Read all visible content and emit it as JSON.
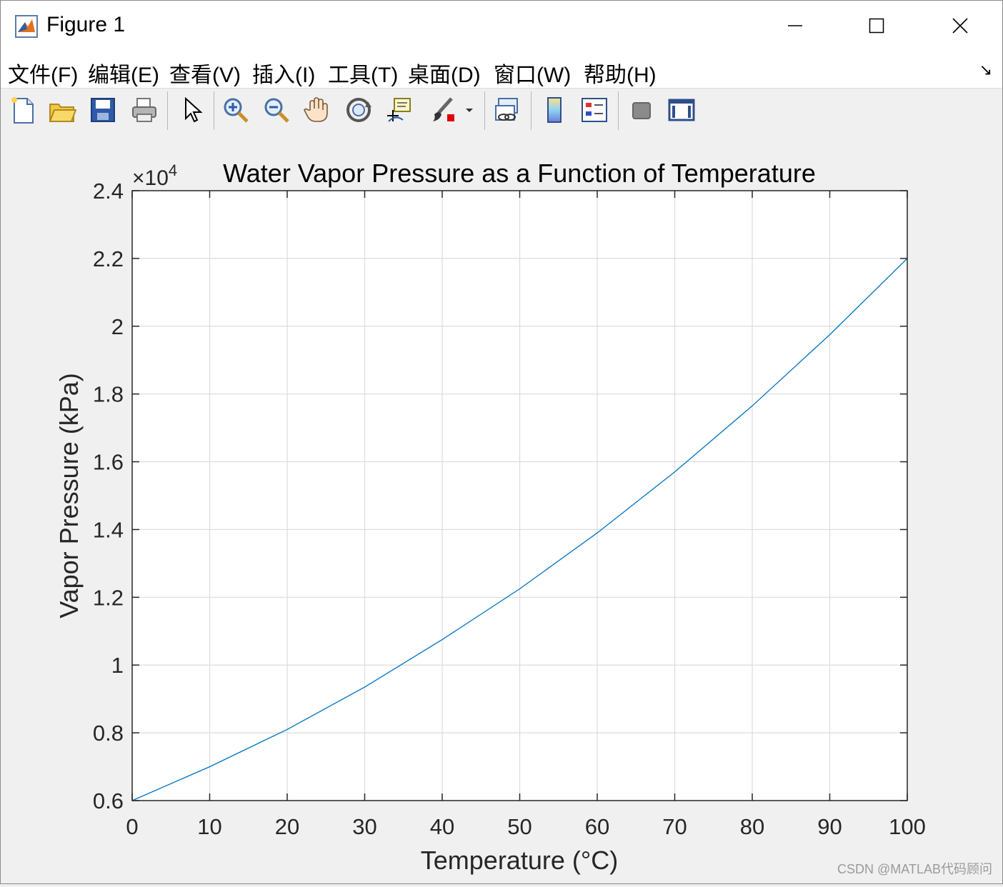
{
  "window": {
    "title": "Figure 1",
    "controls": {
      "minimize": "minimize-icon",
      "maximize": "maximize-icon",
      "close": "close-icon"
    }
  },
  "menu": [
    {
      "label": "文件(F)"
    },
    {
      "label": "编辑(E)"
    },
    {
      "label": "查看(V)"
    },
    {
      "label": "插入(I)"
    },
    {
      "label": "工具(T)"
    },
    {
      "label": "桌面(D)"
    },
    {
      "label": "窗口(W)"
    },
    {
      "label": "帮助(H)"
    }
  ],
  "toolbar": [
    "new-figure-icon",
    "open-file-icon",
    "save-icon",
    "print-icon",
    "edit-plot-arrow-icon",
    "zoom-in-icon",
    "zoom-out-icon",
    "pan-hand-icon",
    "rotate-3d-icon",
    "data-cursor-icon",
    "brush-icon",
    "link-plot-icon",
    "colorbar-icon",
    "legend-icon",
    "hide-plot-tools-icon",
    "show-plot-tools-icon"
  ],
  "chart_data": {
    "type": "line",
    "title": "Water Vapor Pressure as a Function of Temperature",
    "xlabel": "Temperature (°C)",
    "ylabel": "Vapor Pressure (kPa)",
    "y_exponent_label": "×10",
    "y_exponent_power": "4",
    "xlim": [
      0,
      100
    ],
    "ylim": [
      0.6,
      2.4
    ],
    "x_ticks": [
      "0",
      "10",
      "20",
      "30",
      "40",
      "50",
      "60",
      "70",
      "80",
      "90",
      "100"
    ],
    "y_ticks": [
      "0.6",
      "0.8",
      "1",
      "1.2",
      "1.4",
      "1.6",
      "1.8",
      "2",
      "2.2",
      "2.4"
    ],
    "grid": true,
    "line_color": "#0072BD",
    "series": [
      {
        "x": [
          0,
          10,
          20,
          30,
          40,
          50,
          60,
          70,
          80,
          90,
          100
        ],
        "values": [
          0.6,
          0.7,
          0.81,
          0.935,
          1.075,
          1.225,
          1.39,
          1.57,
          1.765,
          1.975,
          2.2
        ]
      }
    ]
  },
  "watermark": "CSDN @MATLAB代码顾问"
}
